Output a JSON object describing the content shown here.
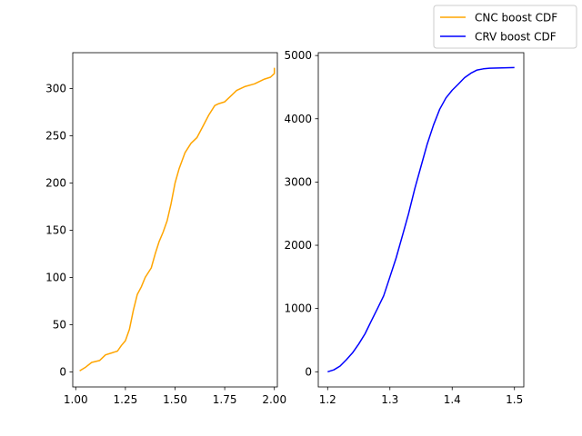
{
  "legend": {
    "placement": "top-right",
    "entries": [
      {
        "label": "CNC boost CDF",
        "color": "#ffa500"
      },
      {
        "label": "CRV boost CDF",
        "color": "#0000ff"
      }
    ]
  },
  "chart_data": [
    {
      "type": "line",
      "title": "",
      "xlabel": "",
      "ylabel": "",
      "xlim": [
        0.985,
        2.015
      ],
      "ylim": [
        -16,
        338
      ],
      "xticks": [
        1.0,
        1.25,
        1.5,
        1.75,
        2.0
      ],
      "xtick_labels": [
        "1.00",
        "1.25",
        "1.50",
        "1.75",
        "2.00"
      ],
      "yticks": [
        0,
        50,
        100,
        150,
        200,
        250,
        300
      ],
      "ytick_labels": [
        "0",
        "50",
        "100",
        "150",
        "200",
        "250",
        "300"
      ],
      "series": [
        {
          "name": "CNC boost CDF",
          "color": "#ffa500",
          "x": [
            1.02,
            1.05,
            1.08,
            1.12,
            1.15,
            1.18,
            1.21,
            1.23,
            1.25,
            1.27,
            1.29,
            1.31,
            1.33,
            1.35,
            1.38,
            1.4,
            1.42,
            1.44,
            1.46,
            1.48,
            1.5,
            1.52,
            1.55,
            1.58,
            1.61,
            1.64,
            1.67,
            1.7,
            1.72,
            1.75,
            1.78,
            1.81,
            1.85,
            1.9,
            1.95,
            1.98,
            2.0,
            2.0
          ],
          "y": [
            1,
            5,
            10,
            12,
            18,
            20,
            22,
            28,
            33,
            45,
            65,
            82,
            90,
            100,
            110,
            125,
            138,
            148,
            160,
            178,
            200,
            215,
            232,
            242,
            248,
            260,
            272,
            282,
            284,
            286,
            292,
            298,
            302,
            305,
            310,
            312,
            316,
            322
          ]
        }
      ]
    },
    {
      "type": "line",
      "title": "",
      "xlabel": "",
      "ylabel": "",
      "xlim": [
        1.185,
        1.515
      ],
      "ylim": [
        -240,
        5045
      ],
      "xticks": [
        1.2,
        1.3,
        1.4,
        1.5
      ],
      "xtick_labels": [
        "1.2",
        "1.3",
        "1.4",
        "1.5"
      ],
      "yticks": [
        0,
        1000,
        2000,
        3000,
        4000,
        5000
      ],
      "ytick_labels": [
        "0",
        "1000",
        "2000",
        "3000",
        "4000",
        "5000"
      ],
      "series": [
        {
          "name": "CRV boost CDF",
          "color": "#0000ff",
          "x": [
            1.2,
            1.21,
            1.22,
            1.23,
            1.24,
            1.25,
            1.26,
            1.27,
            1.28,
            1.29,
            1.3,
            1.31,
            1.32,
            1.33,
            1.34,
            1.35,
            1.36,
            1.37,
            1.38,
            1.39,
            1.4,
            1.41,
            1.42,
            1.43,
            1.44,
            1.45,
            1.46,
            1.48,
            1.5
          ],
          "y": [
            0,
            30,
            90,
            190,
            300,
            440,
            600,
            800,
            1000,
            1200,
            1500,
            1800,
            2150,
            2500,
            2900,
            3250,
            3600,
            3900,
            4150,
            4330,
            4450,
            4550,
            4650,
            4720,
            4770,
            4790,
            4800,
            4805,
            4810
          ]
        }
      ]
    }
  ]
}
